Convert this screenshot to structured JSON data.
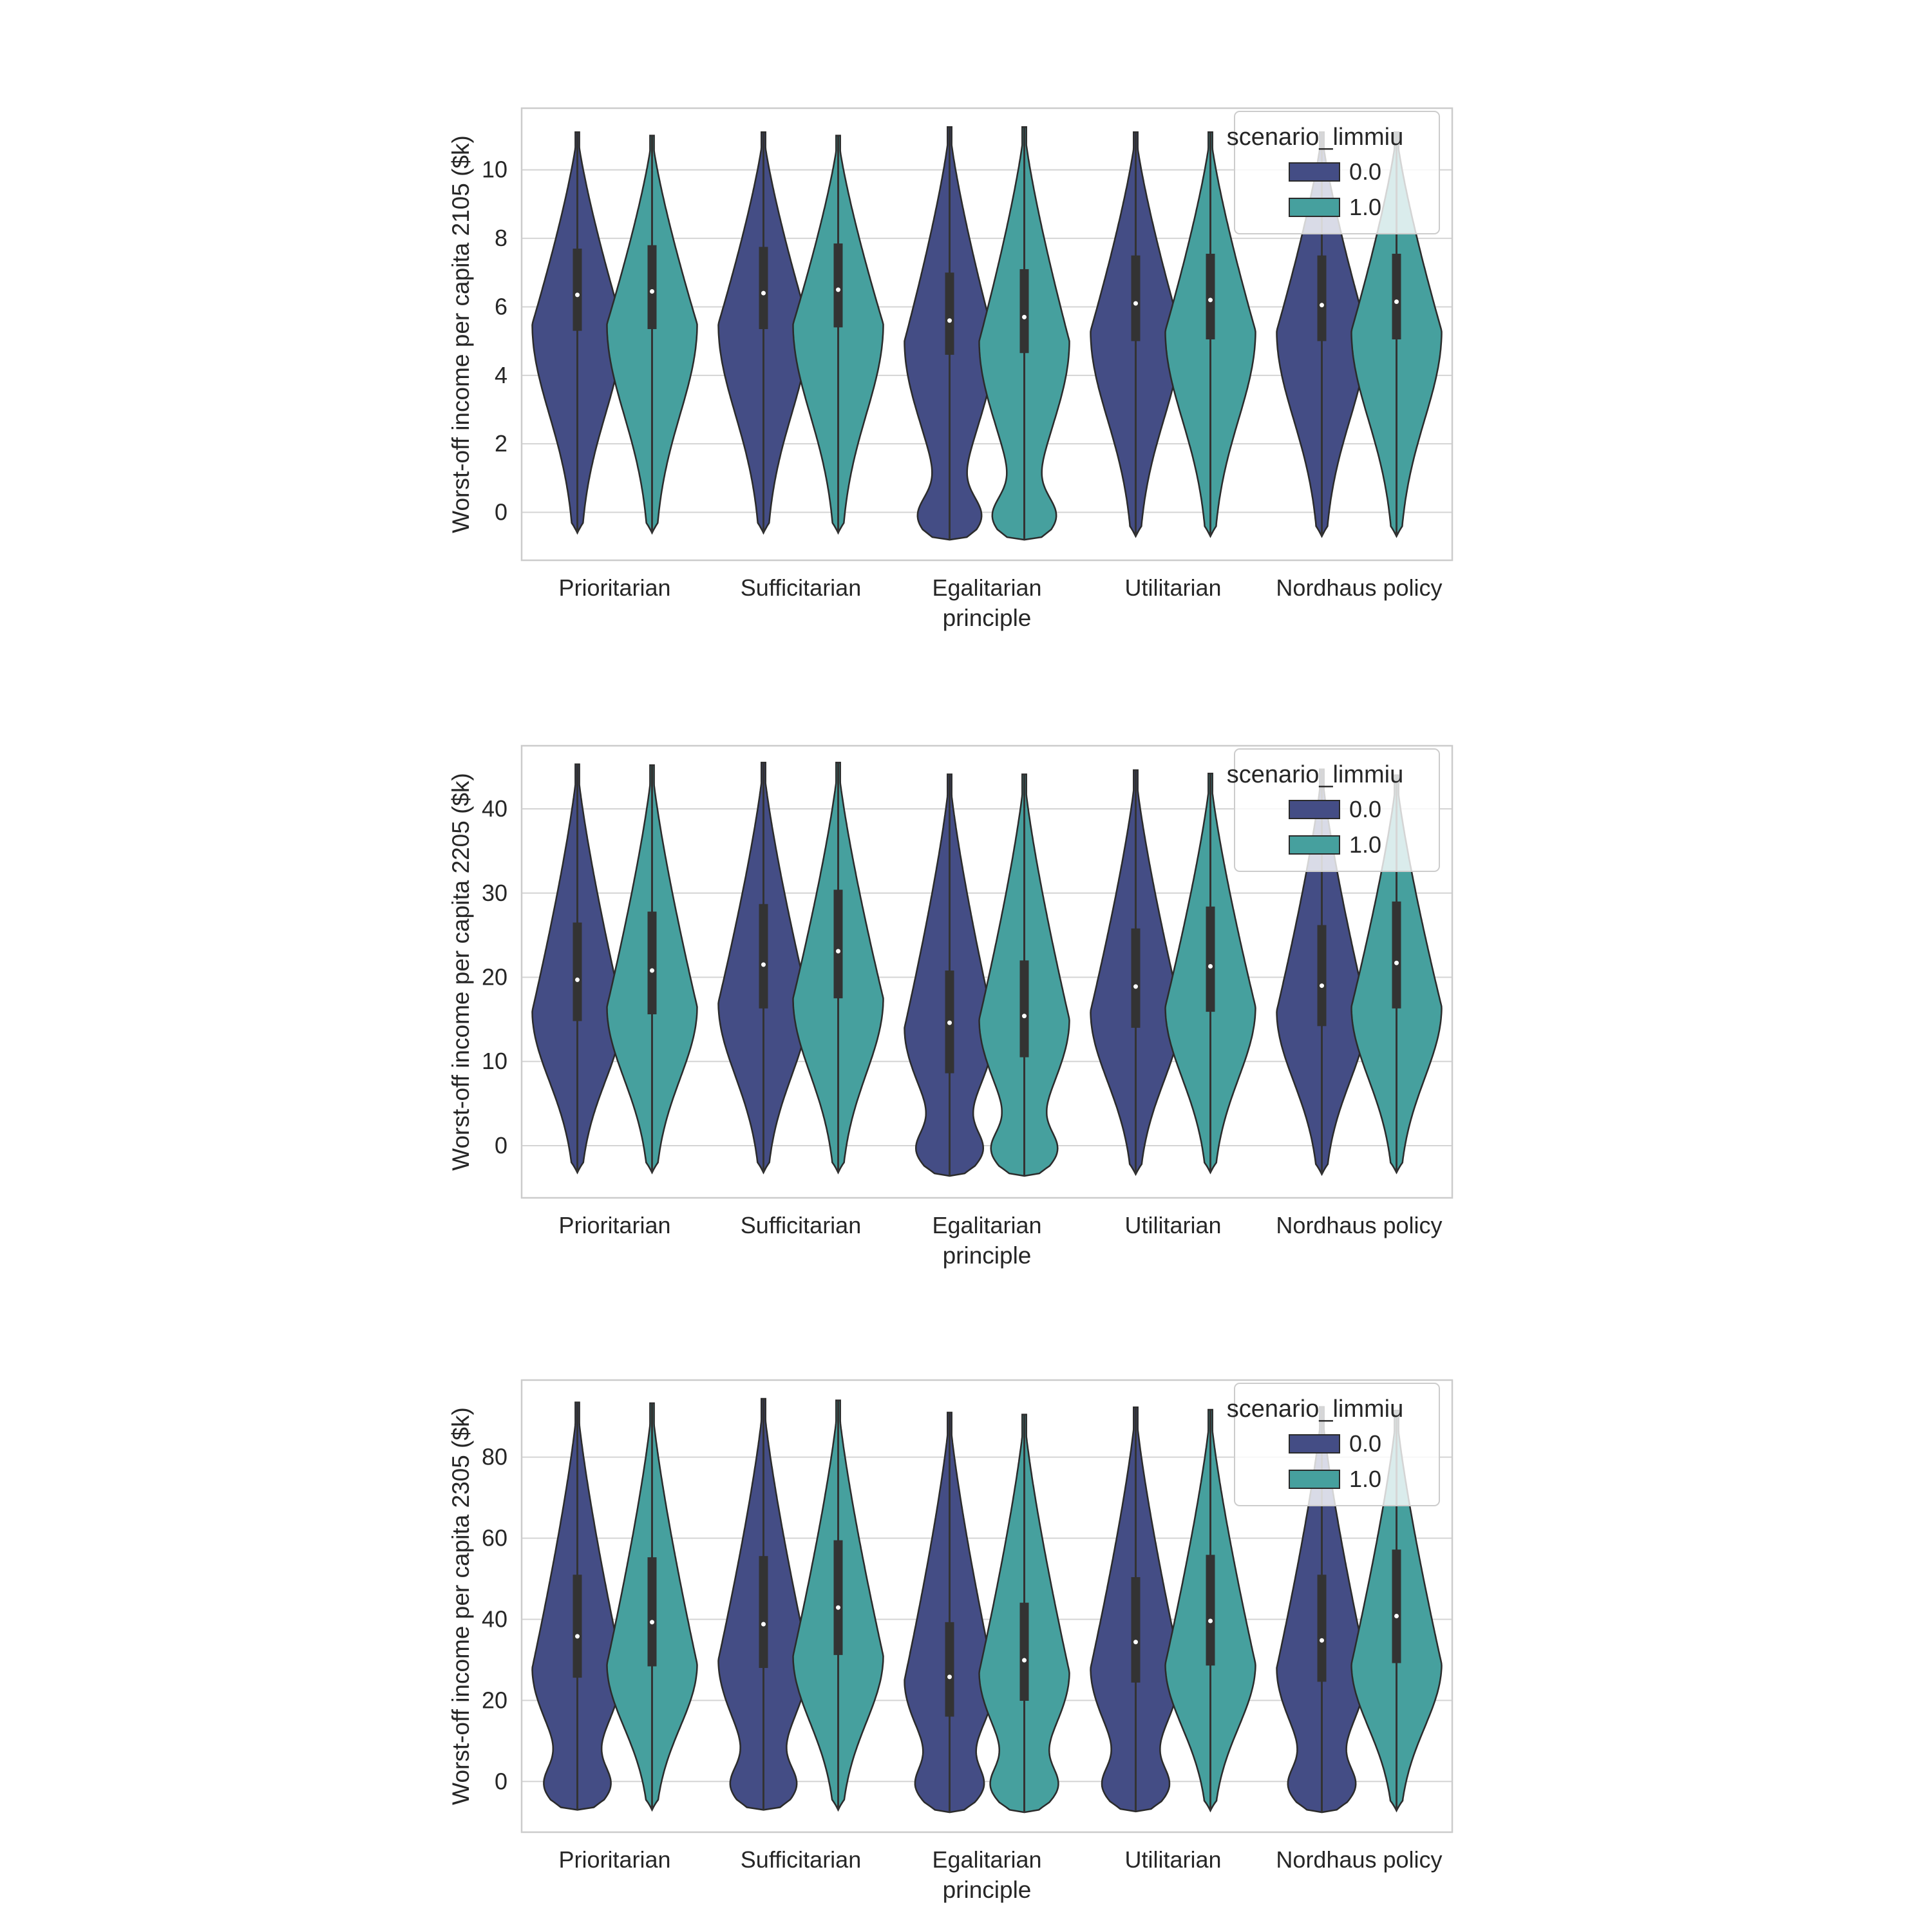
{
  "figure": {
    "colors": {
      "series_0": "#444d85",
      "series_1": "#46a09e",
      "grid": "#d4d4d4",
      "frame": "#cccccc",
      "box": "#333333",
      "outline": "#2b2b2b",
      "text": "#262626"
    }
  },
  "chart_data": [
    {
      "type": "violin",
      "title": "",
      "xlabel": "principle",
      "ylabel": "Worst-off income per capita 2105 ($k)",
      "categories": [
        "Prioritarian",
        "Sufficitarian",
        "Egalitarian",
        "Utilitarian",
        "Nordhaus policy"
      ],
      "ylim": [
        -1.4,
        11.8
      ],
      "yticks": [
        0,
        2,
        4,
        6,
        8,
        10
      ],
      "grid": true,
      "legend": {
        "title": "scenario_limmiu",
        "position": "upper right",
        "entries": [
          "0.0",
          "1.0"
        ]
      },
      "series": [
        {
          "name": "0.0",
          "stats": [
            {
              "min": -0.6,
              "q1": 5.3,
              "median": 6.35,
              "q3": 7.7,
              "max": 11.1,
              "mode": 5.5,
              "low_bump": false
            },
            {
              "min": -0.6,
              "q1": 5.35,
              "median": 6.4,
              "q3": 7.75,
              "max": 11.1,
              "mode": 5.5,
              "low_bump": false
            },
            {
              "min": -0.8,
              "q1": 4.6,
              "median": 5.6,
              "q3": 7.0,
              "max": 11.25,
              "mode": 5.0,
              "low_bump": true
            },
            {
              "min": -0.7,
              "q1": 5.0,
              "median": 6.1,
              "q3": 7.5,
              "max": 11.1,
              "mode": 5.3,
              "low_bump": false
            },
            {
              "min": -0.7,
              "q1": 5.0,
              "median": 6.05,
              "q3": 7.5,
              "max": 11.1,
              "mode": 5.3,
              "low_bump": false
            }
          ]
        },
        {
          "name": "1.0",
          "stats": [
            {
              "min": -0.6,
              "q1": 5.35,
              "median": 6.45,
              "q3": 7.8,
              "max": 11.0,
              "mode": 5.5,
              "low_bump": false
            },
            {
              "min": -0.6,
              "q1": 5.4,
              "median": 6.5,
              "q3": 7.85,
              "max": 11.0,
              "mode": 5.5,
              "low_bump": false
            },
            {
              "min": -0.8,
              "q1": 4.65,
              "median": 5.7,
              "q3": 7.1,
              "max": 11.25,
              "mode": 5.0,
              "low_bump": true
            },
            {
              "min": -0.7,
              "q1": 5.05,
              "median": 6.2,
              "q3": 7.55,
              "max": 11.1,
              "mode": 5.3,
              "low_bump": false
            },
            {
              "min": -0.7,
              "q1": 5.05,
              "median": 6.15,
              "q3": 7.55,
              "max": 11.1,
              "mode": 5.3,
              "low_bump": false
            }
          ]
        }
      ]
    },
    {
      "type": "violin",
      "title": "",
      "xlabel": "principle",
      "ylabel": "Worst-off income per capita 2205 ($k)",
      "categories": [
        "Prioritarian",
        "Sufficitarian",
        "Egalitarian",
        "Utilitarian",
        "Nordhaus policy"
      ],
      "ylim": [
        -6.2,
        47.5
      ],
      "yticks": [
        0,
        10,
        20,
        30,
        40
      ],
      "grid": true,
      "legend": {
        "title": "scenario_limmiu",
        "position": "upper right",
        "entries": [
          "0.0",
          "1.0"
        ]
      },
      "series": [
        {
          "name": "0.0",
          "stats": [
            {
              "min": -3.2,
              "q1": 14.8,
              "median": 19.7,
              "q3": 26.5,
              "max": 45.3,
              "mode": 16.0,
              "low_bump": false
            },
            {
              "min": -3.2,
              "q1": 16.3,
              "median": 21.5,
              "q3": 28.7,
              "max": 45.5,
              "mode": 17.0,
              "low_bump": false
            },
            {
              "min": -3.6,
              "q1": 8.6,
              "median": 14.6,
              "q3": 20.8,
              "max": 44.1,
              "mode": 14.0,
              "low_bump": true
            },
            {
              "min": -3.4,
              "q1": 14.0,
              "median": 18.9,
              "q3": 25.8,
              "max": 44.6,
              "mode": 16.0,
              "low_bump": false
            },
            {
              "min": -3.4,
              "q1": 14.2,
              "median": 19.0,
              "q3": 26.2,
              "max": 44.7,
              "mode": 16.0,
              "low_bump": false
            }
          ]
        },
        {
          "name": "1.0",
          "stats": [
            {
              "min": -3.2,
              "q1": 15.6,
              "median": 20.8,
              "q3": 27.8,
              "max": 45.2,
              "mode": 16.5,
              "low_bump": false
            },
            {
              "min": -3.2,
              "q1": 17.5,
              "median": 23.1,
              "q3": 30.4,
              "max": 45.5,
              "mode": 17.5,
              "low_bump": false
            },
            {
              "min": -3.6,
              "q1": 10.5,
              "median": 15.4,
              "q3": 22.0,
              "max": 44.1,
              "mode": 15.0,
              "low_bump": true
            },
            {
              "min": -3.2,
              "q1": 15.9,
              "median": 21.3,
              "q3": 28.4,
              "max": 44.2,
              "mode": 16.5,
              "low_bump": false
            },
            {
              "min": -3.2,
              "q1": 16.3,
              "median": 21.7,
              "q3": 29.0,
              "max": 44.0,
              "mode": 16.5,
              "low_bump": false
            }
          ]
        }
      ]
    },
    {
      "type": "violin",
      "title": "",
      "xlabel": "principle",
      "ylabel": "Worst-off income per capita 2305 ($k)",
      "categories": [
        "Prioritarian",
        "Sufficitarian",
        "Egalitarian",
        "Utilitarian",
        "Nordhaus policy"
      ],
      "ylim": [
        -12.5,
        99
      ],
      "yticks": [
        0,
        20,
        40,
        60,
        80
      ],
      "grid": true,
      "legend": {
        "title": "scenario_limmiu",
        "position": "upper right",
        "entries": [
          "0.0",
          "1.0"
        ]
      },
      "series": [
        {
          "name": "0.0",
          "stats": [
            {
              "min": -7.0,
              "q1": 25.6,
              "median": 35.8,
              "q3": 51.0,
              "max": 93.5,
              "mode": 28.0,
              "low_bump": true
            },
            {
              "min": -7.0,
              "q1": 28.0,
              "median": 38.8,
              "q3": 55.6,
              "max": 94.4,
              "mode": 30.0,
              "low_bump": true
            },
            {
              "min": -7.6,
              "q1": 16.0,
              "median": 25.8,
              "q3": 39.3,
              "max": 91.0,
              "mode": 25.0,
              "low_bump": true
            },
            {
              "min": -7.4,
              "q1": 24.4,
              "median": 34.4,
              "q3": 50.4,
              "max": 92.3,
              "mode": 28.0,
              "low_bump": true
            },
            {
              "min": -7.6,
              "q1": 24.6,
              "median": 34.8,
              "q3": 51.0,
              "max": 92.4,
              "mode": 28.0,
              "low_bump": true
            }
          ]
        },
        {
          "name": "1.0",
          "stats": [
            {
              "min": -7.0,
              "q1": 28.4,
              "median": 39.3,
              "q3": 55.3,
              "max": 93.3,
              "mode": 29.0,
              "low_bump": false
            },
            {
              "min": -7.0,
              "q1": 31.2,
              "median": 42.9,
              "q3": 59.5,
              "max": 94.0,
              "mode": 31.0,
              "low_bump": false
            },
            {
              "min": -7.6,
              "q1": 19.9,
              "median": 29.9,
              "q3": 44.1,
              "max": 90.5,
              "mode": 27.0,
              "low_bump": true
            },
            {
              "min": -7.2,
              "q1": 28.6,
              "median": 39.6,
              "q3": 55.9,
              "max": 91.7,
              "mode": 29.0,
              "low_bump": false
            },
            {
              "min": -7.2,
              "q1": 29.2,
              "median": 40.8,
              "q3": 57.2,
              "max": 91.5,
              "mode": 29.0,
              "low_bump": false
            }
          ]
        }
      ]
    }
  ]
}
